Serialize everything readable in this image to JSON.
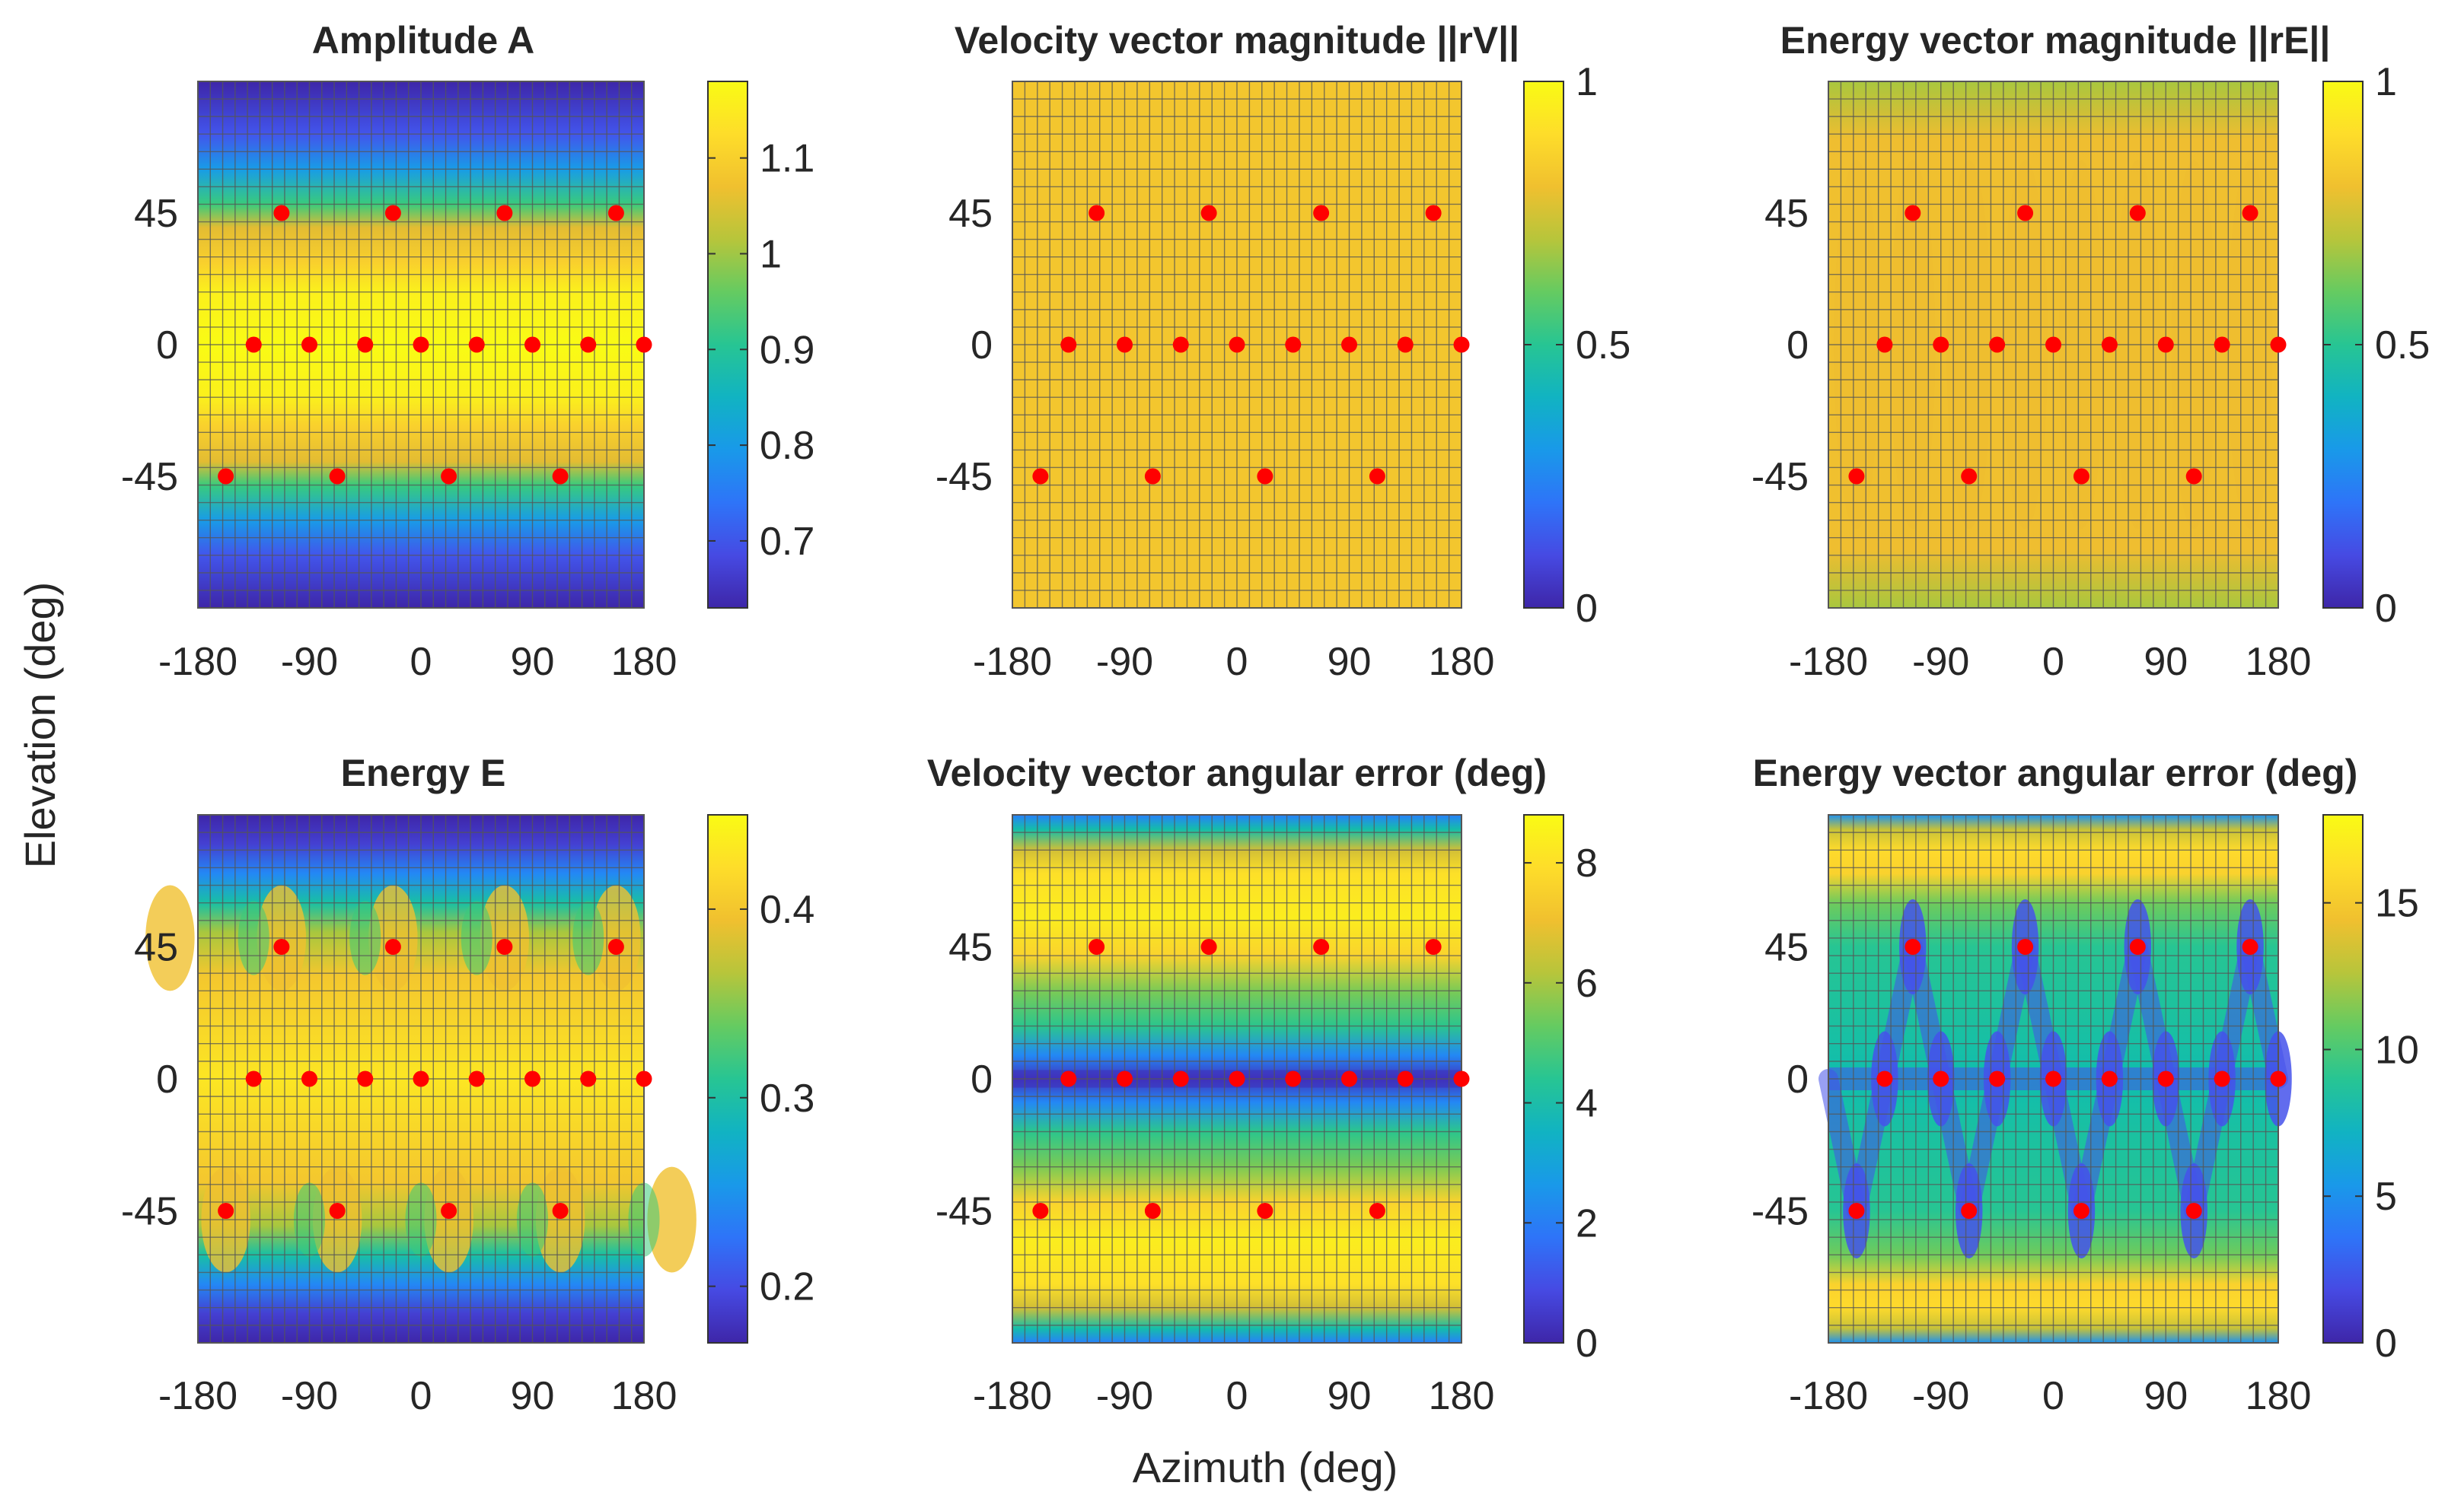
{
  "figure": {
    "xlabel": "Azimuth (deg)",
    "ylabel": "Elevation (deg)"
  },
  "chart_data": [
    {
      "type": "heatmap",
      "title": "Amplitude A",
      "xlim": [
        -180,
        180
      ],
      "ylim": [
        -90,
        90
      ],
      "xticks": [
        -180,
        -90,
        0,
        90,
        180
      ],
      "yticks": [
        45,
        0,
        -45
      ],
      "clim": [
        0.63,
        1.18
      ],
      "cticks": [
        0.7,
        0.8,
        0.9,
        1,
        1.1
      ],
      "elevation_profile": [
        [
          -90,
          0.63
        ],
        [
          -72,
          0.7
        ],
        [
          -60,
          0.8
        ],
        [
          -48,
          0.93
        ],
        [
          -40,
          1.05
        ],
        [
          -28,
          1.1
        ],
        [
          -18,
          1.16
        ],
        [
          0,
          1.18
        ],
        [
          18,
          1.16
        ],
        [
          28,
          1.1
        ],
        [
          40,
          1.05
        ],
        [
          48,
          0.93
        ],
        [
          60,
          0.8
        ],
        [
          72,
          0.7
        ],
        [
          90,
          0.63
        ]
      ]
    },
    {
      "type": "heatmap",
      "title": "Velocity vector magnitude ||rV||",
      "xlim": [
        -180,
        180
      ],
      "ylim": [
        -90,
        90
      ],
      "xticks": [
        -180,
        -90,
        0,
        90,
        180
      ],
      "yticks": [
        45,
        0,
        -45
      ],
      "clim": [
        0,
        1
      ],
      "cticks": [
        0,
        0.5,
        1
      ],
      "elevation_profile": [
        [
          -90,
          0.82
        ],
        [
          90,
          0.82
        ]
      ]
    },
    {
      "type": "heatmap",
      "title": "Energy vector magnitude ||rE||",
      "xlim": [
        -180,
        180
      ],
      "ylim": [
        -90,
        90
      ],
      "xticks": [
        -180,
        -90,
        0,
        90,
        180
      ],
      "yticks": [
        45,
        0,
        -45
      ],
      "clim": [
        0,
        1
      ],
      "cticks": [
        0,
        0.5,
        1
      ],
      "elevation_profile": [
        [
          -90,
          0.68
        ],
        [
          -80,
          0.73
        ],
        [
          -70,
          0.79
        ],
        [
          -55,
          0.8
        ],
        [
          0,
          0.8
        ],
        [
          55,
          0.8
        ],
        [
          70,
          0.79
        ],
        [
          80,
          0.73
        ],
        [
          90,
          0.68
        ]
      ]
    },
    {
      "type": "heatmap",
      "title": "Energy E",
      "xlim": [
        -180,
        180
      ],
      "ylim": [
        -90,
        90
      ],
      "xticks": [
        -180,
        -90,
        0,
        90,
        180
      ],
      "yticks": [
        45,
        0,
        -45
      ],
      "clim": [
        0.17,
        0.45
      ],
      "cticks": [
        0.2,
        0.3,
        0.4
      ],
      "elevation_profile": [
        [
          -90,
          0.17
        ],
        [
          -80,
          0.19
        ],
        [
          -70,
          0.24
        ],
        [
          -60,
          0.3
        ],
        [
          -50,
          0.36
        ],
        [
          -35,
          0.4
        ],
        [
          0,
          0.43
        ],
        [
          35,
          0.4
        ],
        [
          50,
          0.36
        ],
        [
          60,
          0.3
        ],
        [
          70,
          0.24
        ],
        [
          80,
          0.19
        ],
        [
          90,
          0.17
        ]
      ]
    },
    {
      "type": "heatmap",
      "title": "Velocity vector angular error (deg)",
      "xlim": [
        -180,
        180
      ],
      "ylim": [
        -90,
        90
      ],
      "xticks": [
        -180,
        -90,
        0,
        90,
        180
      ],
      "yticks": [
        45,
        0,
        -45
      ],
      "clim": [
        0,
        8.8
      ],
      "cticks": [
        0,
        2,
        4,
        6,
        8
      ],
      "elevation_profile": [
        [
          -90,
          2
        ],
        [
          -85,
          4
        ],
        [
          -78,
          6.5
        ],
        [
          -70,
          8
        ],
        [
          -55,
          8.4
        ],
        [
          -42,
          7.6
        ],
        [
          -30,
          5.5
        ],
        [
          -18,
          4.5
        ],
        [
          -8,
          2.2
        ],
        [
          0,
          0.3
        ],
        [
          8,
          2.2
        ],
        [
          18,
          4.5
        ],
        [
          30,
          5.5
        ],
        [
          42,
          7.6
        ],
        [
          55,
          8.4
        ],
        [
          70,
          8
        ],
        [
          78,
          6.5
        ],
        [
          85,
          4
        ],
        [
          90,
          2
        ]
      ]
    },
    {
      "type": "heatmap",
      "title": "Energy vector angular error (deg)",
      "xlim": [
        -180,
        180
      ],
      "ylim": [
        -90,
        90
      ],
      "xticks": [
        -180,
        -90,
        0,
        90,
        180
      ],
      "yticks": [
        45,
        0,
        -45
      ],
      "clim": [
        0,
        18
      ],
      "cticks": [
        0,
        5,
        10,
        15
      ],
      "elevation_profile": [
        [
          -90,
          5
        ],
        [
          -85,
          13
        ],
        [
          -78,
          16
        ],
        [
          -70,
          15.5
        ],
        [
          -60,
          11
        ],
        [
          -45,
          9
        ],
        [
          -20,
          8.5
        ],
        [
          0,
          8
        ],
        [
          20,
          8.5
        ],
        [
          45,
          9
        ],
        [
          60,
          11
        ],
        [
          70,
          15.5
        ],
        [
          78,
          16
        ],
        [
          85,
          13
        ],
        [
          90,
          5
        ]
      ]
    }
  ],
  "speaker_positions": {
    "elevation_45": [
      -112.5,
      -22.5,
      67.5,
      157.5
    ],
    "elevation_0": [
      -135,
      -90,
      -45,
      0,
      45,
      90,
      135,
      180
    ],
    "elevation_minus_45": [
      -157.5,
      -67.5,
      22.5,
      112.5
    ],
    "marker_color": "#ff0000"
  }
}
